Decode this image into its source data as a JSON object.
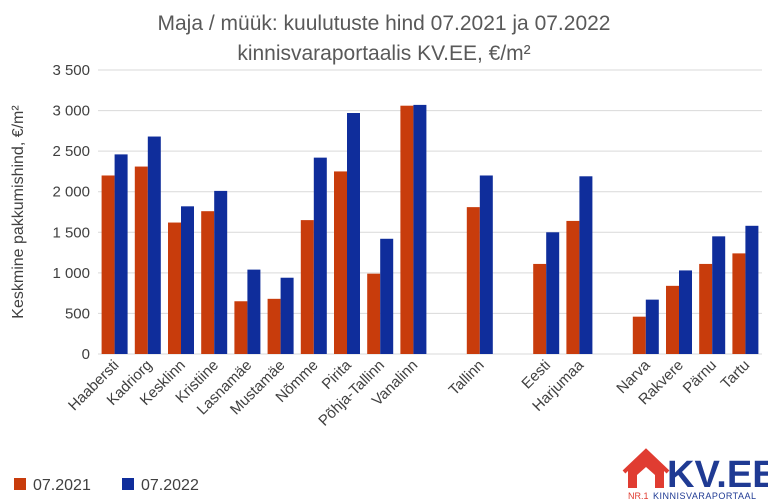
{
  "chart_data": {
    "type": "bar",
    "title_line1": "Maja / müük: kuulutuste hind 07.2021 ja 07.2022",
    "title_line2": "kinnisvaraportaalis KV.EE, €/m²",
    "ylabel": "Keskmine pakkumishind, €/m²",
    "ylim": [
      0,
      3500
    ],
    "yticks": [
      0,
      500,
      1000,
      1500,
      2000,
      2500,
      3000,
      3500
    ],
    "ytick_labels": [
      "0",
      "500",
      "1 000",
      "1 500",
      "2 000",
      "2 500",
      "3 000",
      "3 500"
    ],
    "grid": true,
    "legend_position": "bottom-left",
    "categories": [
      "Haabersti",
      "Kadriorg",
      "Kesklinn",
      "Kristiine",
      "Lasnamäe",
      "Mustamäe",
      "Nõmme",
      "Pirita",
      "Põhja-Tallinn",
      "Vanalinn",
      "",
      "Tallinn",
      "",
      "Eesti",
      "Harjumaa",
      "",
      "Narva",
      "Rakvere",
      "Pärnu",
      "Tartu"
    ],
    "series": [
      {
        "name": "07.2021",
        "color": "#c83c0c",
        "values": [
          2200,
          2310,
          1620,
          1760,
          650,
          680,
          1650,
          2250,
          990,
          3060,
          null,
          1810,
          null,
          1110,
          1640,
          null,
          460,
          840,
          1110,
          1240
        ]
      },
      {
        "name": "07.2022",
        "color": "#0f2d9b",
        "values": [
          2460,
          2680,
          1820,
          2010,
          1040,
          940,
          2420,
          2970,
          1420,
          3070,
          null,
          2200,
          null,
          1500,
          2190,
          null,
          670,
          1030,
          1450,
          1580
        ]
      }
    ]
  },
  "logo": {
    "text": "KV.EE",
    "nr": "NR.1",
    "subtitle": "KINNISVARAPORTAAL",
    "colors": {
      "red": "#e03c31",
      "blue": "#1f3a93"
    }
  }
}
